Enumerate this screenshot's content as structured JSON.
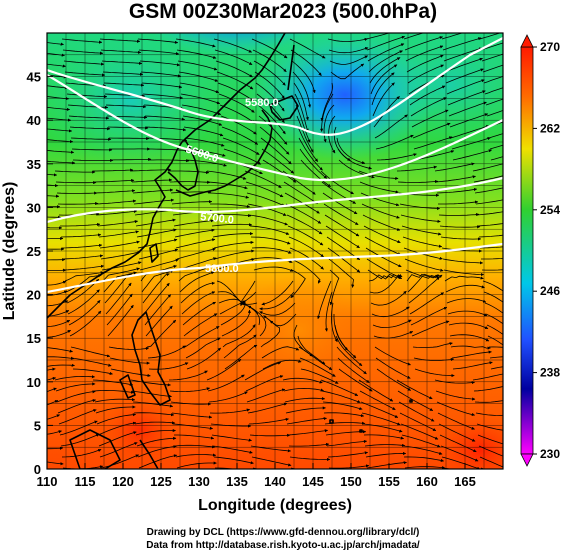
{
  "title": "GSM 00Z30Mar2023 (500.0hPa)",
  "xlabel": "Longitude (degrees)",
  "ylabel": "Latitude (degrees)",
  "x_ticks": [
    "110",
    "115",
    "120",
    "125",
    "130",
    "135",
    "140",
    "145",
    "150",
    "155",
    "160",
    "165"
  ],
  "y_ticks": [
    "0",
    "5",
    "10",
    "15",
    "20",
    "25",
    "30",
    "35",
    "40",
    "45"
  ],
  "colorbar": {
    "ticks": [
      "270",
      "262",
      "254",
      "246",
      "238",
      "230"
    ],
    "colors": [
      "#ff1a00",
      "#ff8000",
      "#e8e800",
      "#30c830",
      "#00c8e8",
      "#2050ff",
      "#0000a0",
      "#ff00ff"
    ]
  },
  "contour_labels": [
    "5580.0",
    "5600.0",
    "5700.0",
    "5800.0"
  ],
  "credits": {
    "line1": "Drawing by DCL (https://www.gfd-dennou.org/library/dcl/)",
    "line2": "Data from http://database.rish.kyoto-u.ac.jp/arch/jmadata/"
  },
  "chart_data": {
    "type": "heatmap",
    "field": "temperature (K) at 500.0hPa with wind streamlines and height contours",
    "xlim": [
      110,
      170
    ],
    "ylim": [
      0,
      50
    ],
    "clim": [
      230,
      270
    ],
    "height_contours": [
      {
        "value": "5580.0",
        "lat_at_150E": 41
      },
      {
        "value": "5600.0",
        "lat_at_150E": 36
      },
      {
        "value": "5700.0",
        "lat_at_150E": 30
      },
      {
        "value": "5800.0",
        "lat_at_150E": 25.5
      }
    ],
    "cold_core_low": {
      "lon": 148.5,
      "lat": 45
    }
  }
}
